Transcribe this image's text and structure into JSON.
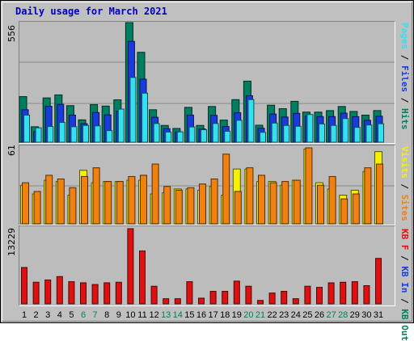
{
  "title": "Daily usage for March 2021",
  "colors": {
    "hits": "#007f60",
    "files": "#1a3bdc",
    "pages": "#33e0ee",
    "visits": "#f5f000",
    "sites": "#f08010",
    "kbin": "#1a3bdc",
    "kbout": "#007f60",
    "kbf": "#e01010",
    "weekend": "#00805a",
    "weekday": "#000000"
  },
  "chart_data": [
    {
      "type": "bar",
      "title": "",
      "max_label": "556",
      "legend": [
        {
          "text": "Pages",
          "color": "#33e0ee"
        },
        {
          "text": " / ",
          "color": "#000000"
        },
        {
          "text": "Files",
          "color": "#1a3bdc"
        },
        {
          "text": " / ",
          "color": "#000000"
        },
        {
          "text": "Hits",
          "color": "#007f60"
        }
      ],
      "legend_position": "right",
      "ylim": [
        0,
        556
      ],
      "categories": [
        "1",
        "2",
        "3",
        "4",
        "5",
        "6",
        "7",
        "8",
        "9",
        "10",
        "11",
        "12",
        "13",
        "14",
        "15",
        "16",
        "17",
        "18",
        "19",
        "20",
        "21",
        "22",
        "23",
        "24",
        "25",
        "26",
        "27",
        "28",
        "29",
        "30",
        "31"
      ],
      "series": [
        {
          "name": "Hits",
          "values": [
            212,
            72,
            206,
            220,
            170,
            104,
            175,
            168,
            197,
            556,
            418,
            151,
            78,
            64,
            162,
            78,
            166,
            103,
            198,
            284,
            79,
            172,
            156,
            190,
            140,
            140,
            147,
            166,
            143,
            126,
            147
          ]
        },
        {
          "name": "Files",
          "values": [
            151,
            49,
            167,
            176,
            126,
            86,
            138,
            127,
            144,
            469,
            293,
            116,
            63,
            48,
            126,
            62,
            125,
            73,
            137,
            216,
            65,
            131,
            117,
            134,
            122,
            119,
            119,
            135,
            119,
            102,
            121
          ]
        },
        {
          "name": "Pages",
          "values": [
            126,
            67,
            73,
            92,
            72,
            78,
            76,
            54,
            154,
            301,
            228,
            87,
            47,
            48,
            71,
            58,
            87,
            51,
            102,
            198,
            46,
            89,
            78,
            74,
            129,
            85,
            78,
            110,
            69,
            80,
            86
          ]
        }
      ],
      "grid": true
    },
    {
      "type": "bar",
      "title": "",
      "max_label": "61",
      "legend": [
        {
          "text": "Visits",
          "color": "#f5f000"
        },
        {
          "text": " / ",
          "color": "#000000"
        },
        {
          "text": "Sites",
          "color": "#f08010"
        }
      ],
      "legend_position": "right",
      "ylim": [
        0,
        61
      ],
      "categories": [
        "1",
        "2",
        "3",
        "4",
        "5",
        "6",
        "7",
        "8",
        "9",
        "10",
        "11",
        "12",
        "13",
        "14",
        "15",
        "16",
        "17",
        "18",
        "19",
        "20",
        "21",
        "22",
        "23",
        "24",
        "25",
        "26",
        "27",
        "28",
        "29",
        "30",
        "31"
      ],
      "series": [
        {
          "name": "Visits",
          "values": [
            31,
            24,
            35,
            34,
            23,
            43,
            33,
            34,
            34,
            35,
            35,
            24,
            25,
            28,
            28,
            27,
            30,
            23,
            44,
            44,
            34,
            34,
            31,
            35,
            60,
            33,
            28,
            23,
            27,
            42,
            58
          ]
        },
        {
          "name": "Sites",
          "values": [
            33,
            26,
            39,
            36,
            29,
            38,
            45,
            34,
            34,
            38,
            39,
            48,
            30,
            27,
            29,
            32,
            36,
            56,
            26,
            45,
            39,
            33,
            34,
            35,
            61,
            31,
            38,
            20,
            24,
            45,
            48
          ]
        }
      ],
      "grid": true
    },
    {
      "type": "bar",
      "title": "",
      "max_label": "13229",
      "legend": [
        {
          "text": "KB F",
          "color": "#e01010"
        },
        {
          "text": " / ",
          "color": "#000000"
        },
        {
          "text": "KB In",
          "color": "#1a3bdc"
        },
        {
          "text": " / ",
          "color": "#000000"
        },
        {
          "text": "KB Out",
          "color": "#007f60"
        }
      ],
      "legend_position": "right",
      "ylim": [
        0,
        13229
      ],
      "categories": [
        "1",
        "2",
        "3",
        "4",
        "5",
        "6",
        "7",
        "8",
        "9",
        "10",
        "11",
        "12",
        "13",
        "14",
        "15",
        "16",
        "17",
        "18",
        "19",
        "20",
        "21",
        "22",
        "23",
        "24",
        "25",
        "26",
        "27",
        "28",
        "29",
        "30",
        "31"
      ],
      "series": [
        {
          "name": "KB F",
          "values": [
            6400,
            3800,
            4200,
            4800,
            3900,
            3700,
            3400,
            3700,
            3800,
            13229,
            9300,
            3100,
            900,
            900,
            3900,
            1000,
            2200,
            2200,
            4000,
            3100,
            600,
            1900,
            2200,
            900,
            3100,
            2900,
            3700,
            3800,
            3900,
            3200,
            8000
          ]
        }
      ],
      "grid": false
    }
  ],
  "x_labels": [
    {
      "text": "1",
      "weekend": false
    },
    {
      "text": "2",
      "weekend": false
    },
    {
      "text": "3",
      "weekend": false
    },
    {
      "text": "4",
      "weekend": false
    },
    {
      "text": "5",
      "weekend": false
    },
    {
      "text": "6",
      "weekend": true
    },
    {
      "text": "7",
      "weekend": true
    },
    {
      "text": "8",
      "weekend": false
    },
    {
      "text": "9",
      "weekend": false
    },
    {
      "text": "10",
      "weekend": false
    },
    {
      "text": "11",
      "weekend": false
    },
    {
      "text": "12",
      "weekend": false
    },
    {
      "text": "13",
      "weekend": true
    },
    {
      "text": "14",
      "weekend": true
    },
    {
      "text": "15",
      "weekend": false
    },
    {
      "text": "16",
      "weekend": false
    },
    {
      "text": "17",
      "weekend": false
    },
    {
      "text": "18",
      "weekend": false
    },
    {
      "text": "19",
      "weekend": false
    },
    {
      "text": "20",
      "weekend": true
    },
    {
      "text": "21",
      "weekend": true
    },
    {
      "text": "22",
      "weekend": false
    },
    {
      "text": "23",
      "weekend": false
    },
    {
      "text": "24",
      "weekend": false
    },
    {
      "text": "25",
      "weekend": false
    },
    {
      "text": "26",
      "weekend": false
    },
    {
      "text": "27",
      "weekend": true
    },
    {
      "text": "28",
      "weekend": true
    },
    {
      "text": "29",
      "weekend": false
    },
    {
      "text": "30",
      "weekend": false
    },
    {
      "text": "31",
      "weekend": false
    }
  ]
}
